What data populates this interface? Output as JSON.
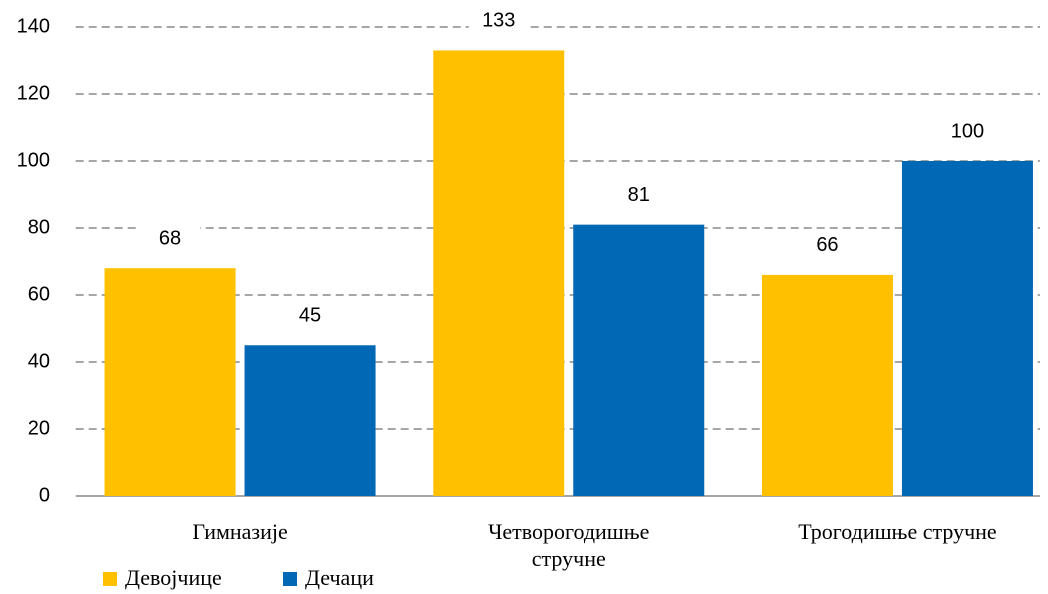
{
  "chart_data": {
    "type": "bar",
    "categories": [
      "Гимназије",
      "Четворогодишње стручне",
      "Трогодишње стручне"
    ],
    "series": [
      {
        "name": "Девојчице",
        "color": "#ffc000",
        "values": [
          68,
          133,
          66
        ]
      },
      {
        "name": "Дечаци",
        "color": "#0068b4",
        "values": [
          45,
          81,
          100
        ]
      }
    ],
    "ylim": [
      0,
      140
    ],
    "yticks": [
      0,
      20,
      40,
      60,
      80,
      100,
      120,
      140
    ],
    "grid": true
  }
}
